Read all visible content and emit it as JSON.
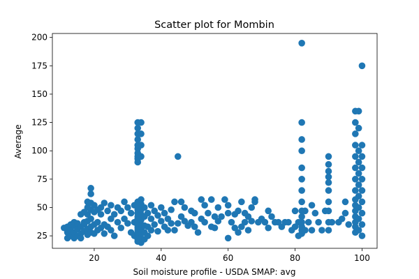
{
  "chart_data": {
    "type": "scatter",
    "title": "Scatter plot for Mombin",
    "xlabel": "Soil moisture profile - USDA SMAP: avg",
    "ylabel": "Average",
    "xlim": [
      7.5,
      104.5
    ],
    "ylim": [
      14,
      203.5
    ],
    "xticks": [
      20,
      40,
      60,
      80,
      100
    ],
    "yticks": [
      25,
      50,
      75,
      100,
      125,
      150,
      175,
      200
    ],
    "grid": false,
    "marker_color": "#1f77b4",
    "series": [
      {
        "points": [
          [
            11,
            32
          ],
          [
            12,
            23
          ],
          [
            12,
            28
          ],
          [
            12,
            33
          ],
          [
            13,
            25
          ],
          [
            13,
            30
          ],
          [
            13,
            35
          ],
          [
            14,
            23
          ],
          [
            14,
            28
          ],
          [
            14,
            34
          ],
          [
            14,
            37
          ],
          [
            15,
            25
          ],
          [
            15,
            31
          ],
          [
            15,
            36
          ],
          [
            16,
            27
          ],
          [
            16,
            33
          ],
          [
            16,
            44
          ],
          [
            16,
            23
          ],
          [
            17,
            29
          ],
          [
            17,
            35
          ],
          [
            17,
            37
          ],
          [
            17,
            46
          ],
          [
            18,
            26
          ],
          [
            18,
            31
          ],
          [
            18,
            38
          ],
          [
            18,
            44
          ],
          [
            18,
            50
          ],
          [
            18,
            55
          ],
          [
            19,
            28
          ],
          [
            19,
            33
          ],
          [
            19,
            40
          ],
          [
            19,
            48
          ],
          [
            19,
            54
          ],
          [
            19,
            62
          ],
          [
            19,
            67
          ],
          [
            20,
            27
          ],
          [
            20,
            35
          ],
          [
            20,
            46
          ],
          [
            20,
            52
          ],
          [
            21,
            30
          ],
          [
            21,
            37
          ],
          [
            21,
            48
          ],
          [
            22,
            32
          ],
          [
            22,
            44
          ],
          [
            22,
            50
          ],
          [
            23,
            27
          ],
          [
            23,
            35
          ],
          [
            23,
            54
          ],
          [
            24,
            33
          ],
          [
            24,
            47
          ],
          [
            25,
            30
          ],
          [
            25,
            40
          ],
          [
            25,
            52
          ],
          [
            26,
            44
          ],
          [
            26,
            25
          ],
          [
            27,
            37
          ],
          [
            27,
            50
          ],
          [
            28,
            32
          ],
          [
            28,
            47
          ],
          [
            29,
            40
          ],
          [
            29,
            55
          ],
          [
            30,
            36
          ],
          [
            30,
            50
          ],
          [
            31,
            28
          ],
          [
            31,
            45
          ],
          [
            32,
            37
          ],
          [
            32,
            52
          ],
          [
            32,
            25
          ],
          [
            33,
            20
          ],
          [
            33,
            22
          ],
          [
            33,
            24
          ],
          [
            33,
            26
          ],
          [
            33,
            28
          ],
          [
            33,
            30
          ],
          [
            33,
            32
          ],
          [
            33,
            34
          ],
          [
            33,
            36
          ],
          [
            33,
            38
          ],
          [
            33,
            40
          ],
          [
            33,
            42
          ],
          [
            33,
            45
          ],
          [
            33,
            48
          ],
          [
            33,
            52
          ],
          [
            33,
            55
          ],
          [
            33,
            90
          ],
          [
            33,
            93
          ],
          [
            33,
            95
          ],
          [
            33,
            98
          ],
          [
            33,
            102
          ],
          [
            33,
            105
          ],
          [
            33,
            110
          ],
          [
            33,
            115
          ],
          [
            33,
            120
          ],
          [
            33,
            125
          ],
          [
            34,
            19
          ],
          [
            34,
            23
          ],
          [
            34,
            27
          ],
          [
            34,
            31
          ],
          [
            34,
            35
          ],
          [
            34,
            39
          ],
          [
            34,
            44
          ],
          [
            34,
            48
          ],
          [
            34,
            53
          ],
          [
            34,
            57
          ],
          [
            34,
            95
          ],
          [
            34,
            105
          ],
          [
            34,
            115
          ],
          [
            34,
            125
          ],
          [
            35,
            22
          ],
          [
            35,
            28
          ],
          [
            35,
            34
          ],
          [
            35,
            42
          ],
          [
            35,
            50
          ],
          [
            36,
            25
          ],
          [
            36,
            33
          ],
          [
            36,
            45
          ],
          [
            37,
            30
          ],
          [
            37,
            40
          ],
          [
            37,
            52
          ],
          [
            38,
            35
          ],
          [
            38,
            47
          ],
          [
            39,
            29
          ],
          [
            39,
            43
          ],
          [
            40,
            38
          ],
          [
            40,
            50
          ],
          [
            41,
            33
          ],
          [
            41,
            45
          ],
          [
            42,
            30
          ],
          [
            42,
            40
          ],
          [
            43,
            36
          ],
          [
            43,
            48
          ],
          [
            44,
            30
          ],
          [
            44,
            55
          ],
          [
            45,
            36
          ],
          [
            45,
            95
          ],
          [
            46,
            42
          ],
          [
            46,
            55
          ],
          [
            47,
            38
          ],
          [
            47,
            50
          ],
          [
            48,
            34
          ],
          [
            49,
            37
          ],
          [
            49,
            47
          ],
          [
            50,
            33
          ],
          [
            50,
            45
          ],
          [
            51,
            28
          ],
          [
            52,
            40
          ],
          [
            52,
            57
          ],
          [
            53,
            37
          ],
          [
            53,
            52
          ],
          [
            54,
            45
          ],
          [
            55,
            33
          ],
          [
            55,
            57
          ],
          [
            56,
            42
          ],
          [
            56,
            32
          ],
          [
            57,
            38
          ],
          [
            57,
            50
          ],
          [
            58,
            42
          ],
          [
            59,
            57
          ],
          [
            60,
            23
          ],
          [
            60,
            45
          ],
          [
            60,
            52
          ],
          [
            61,
            37
          ],
          [
            62,
            32
          ],
          [
            62,
            44
          ],
          [
            63,
            28
          ],
          [
            63,
            47
          ],
          [
            64,
            33
          ],
          [
            64,
            55
          ],
          [
            65,
            37
          ],
          [
            65,
            45
          ],
          [
            66,
            30
          ],
          [
            66,
            42
          ],
          [
            67,
            38
          ],
          [
            67,
            50
          ],
          [
            68,
            55
          ],
          [
            68,
            57
          ],
          [
            69,
            37
          ],
          [
            70,
            40
          ],
          [
            71,
            37
          ],
          [
            72,
            32
          ],
          [
            72,
            47
          ],
          [
            73,
            42
          ],
          [
            74,
            37
          ],
          [
            75,
            37
          ],
          [
            76,
            33
          ],
          [
            77,
            37
          ],
          [
            78,
            37
          ],
          [
            79,
            30
          ],
          [
            80,
            33
          ],
          [
            80,
            47
          ],
          [
            81,
            25
          ],
          [
            81,
            37
          ],
          [
            82,
            27
          ],
          [
            82,
            30
          ],
          [
            82,
            33
          ],
          [
            82,
            37
          ],
          [
            82,
            42
          ],
          [
            82,
            47
          ],
          [
            82,
            55
          ],
          [
            82,
            65
          ],
          [
            82,
            75
          ],
          [
            82,
            85
          ],
          [
            82,
            100
          ],
          [
            82,
            110
          ],
          [
            82,
            125
          ],
          [
            82,
            195
          ],
          [
            83,
            30
          ],
          [
            83,
            47
          ],
          [
            84,
            37
          ],
          [
            85,
            30
          ],
          [
            85,
            52
          ],
          [
            86,
            45
          ],
          [
            87,
            37
          ],
          [
            88,
            30
          ],
          [
            89,
            47
          ],
          [
            90,
            30
          ],
          [
            90,
            37
          ],
          [
            90,
            47
          ],
          [
            90,
            55
          ],
          [
            90,
            65
          ],
          [
            90,
            72
          ],
          [
            90,
            77
          ],
          [
            90,
            82
          ],
          [
            90,
            88
          ],
          [
            90,
            95
          ],
          [
            91,
            37
          ],
          [
            93,
            37
          ],
          [
            94,
            40
          ],
          [
            95,
            45
          ],
          [
            95,
            55
          ],
          [
            96,
            35
          ],
          [
            98,
            28
          ],
          [
            98,
            33
          ],
          [
            98,
            37
          ],
          [
            98,
            42
          ],
          [
            98,
            47
          ],
          [
            98,
            52
          ],
          [
            98,
            57
          ],
          [
            98,
            65
          ],
          [
            98,
            75
          ],
          [
            98,
            85
          ],
          [
            98,
            95
          ],
          [
            98,
            105
          ],
          [
            98,
            115
          ],
          [
            98,
            125
          ],
          [
            98,
            135
          ],
          [
            99,
            30
          ],
          [
            99,
            40
          ],
          [
            99,
            50
          ],
          [
            99,
            60
          ],
          [
            99,
            70
          ],
          [
            99,
            80
          ],
          [
            99,
            90
          ],
          [
            99,
            100
          ],
          [
            99,
            120
          ],
          [
            99,
            135
          ],
          [
            100,
            25
          ],
          [
            100,
            35
          ],
          [
            100,
            45
          ],
          [
            100,
            55
          ],
          [
            100,
            65
          ],
          [
            100,
            75
          ],
          [
            100,
            85
          ],
          [
            100,
            95
          ],
          [
            100,
            105
          ],
          [
            100,
            175
          ]
        ]
      }
    ]
  }
}
